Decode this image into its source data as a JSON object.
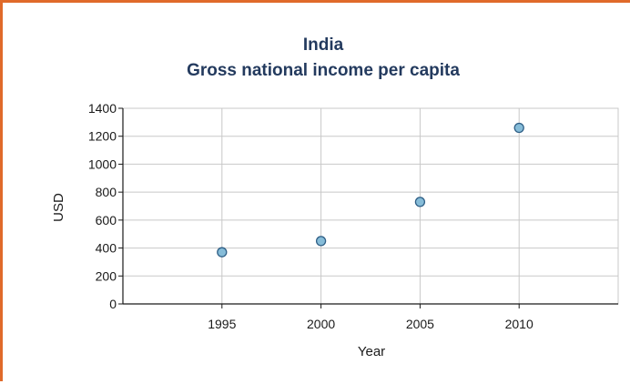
{
  "chart_data": {
    "type": "scatter",
    "title": "India",
    "subtitle": "Gross national income per capita",
    "xlabel": "Year",
    "ylabel": "USD",
    "x": [
      1995,
      2000,
      2005,
      2010
    ],
    "y": [
      370,
      450,
      730,
      1260
    ],
    "xticks": [
      1995,
      2000,
      2005,
      2010
    ],
    "yticks": [
      0,
      200,
      400,
      600,
      800,
      1000,
      1200,
      1400
    ],
    "xlim": [
      1990,
      2015
    ],
    "ylim": [
      0,
      1400
    ],
    "grid": true,
    "colors": {
      "marker_fill": "#86bcd8",
      "marker_stroke": "#2f5f86",
      "frame": "#e06a2a",
      "title": "#233a5e"
    }
  }
}
